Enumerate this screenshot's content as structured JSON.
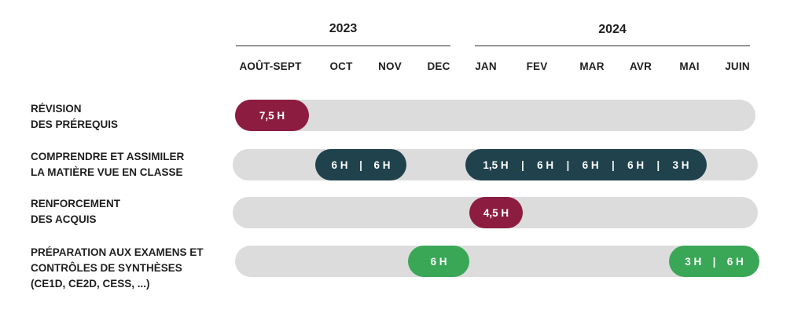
{
  "colors": {
    "maroon": "#8c1d40",
    "teal": "#1f424d",
    "green": "#3aa757",
    "track": "#dcdcdc"
  },
  "years": [
    "2023",
    "2024"
  ],
  "months": [
    "AOÛT-SEPT",
    "OCT",
    "NOV",
    "DEC",
    "JAN",
    "FEV",
    "MAR",
    "AVR",
    "MAI",
    "JUIN"
  ],
  "rows": [
    {
      "label_lines": [
        "RÉVISION",
        "DES PRÉREQUIS"
      ],
      "bars": [
        {
          "color": "maroon",
          "segments": [
            "7,5 H"
          ]
        }
      ]
    },
    {
      "label_lines": [
        "COMPRENDRE ET ASSIMILER",
        "LA MATIÈRE VUE EN CLASSE"
      ],
      "bars": [
        {
          "color": "teal",
          "segments": [
            "6 H",
            "6 H"
          ]
        },
        {
          "color": "teal",
          "segments": [
            "1,5 H",
            "6 H",
            "6 H",
            "6 H",
            "3 H"
          ]
        }
      ]
    },
    {
      "label_lines": [
        "RENFORCEMENT",
        "DES ACQUIS"
      ],
      "bars": [
        {
          "color": "maroon",
          "segments": [
            "4,5 H"
          ]
        }
      ]
    },
    {
      "label_lines": [
        "PRÉPARATION AUX EXAMENS ET",
        "CONTRÔLES DE SYNTHÈSES",
        "(CE1D, CE2D, CESS, ...)"
      ],
      "bars": [
        {
          "color": "green",
          "segments": [
            "6 H"
          ]
        },
        {
          "color": "green",
          "segments": [
            "3 H",
            "6 H"
          ]
        }
      ]
    }
  ],
  "separator": "|"
}
